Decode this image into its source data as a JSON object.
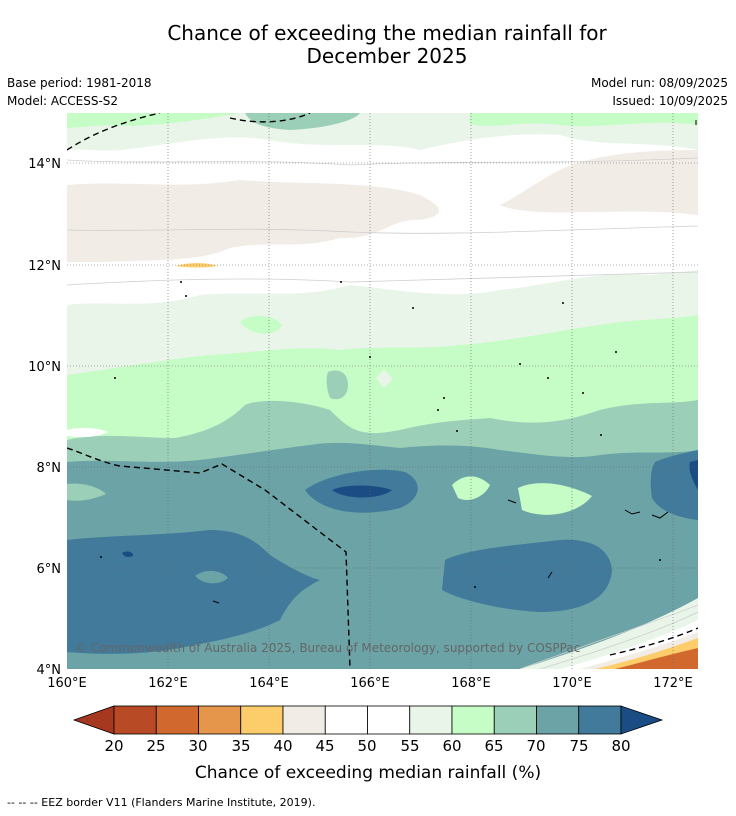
{
  "title_line1": "Chance of exceeding the median rainfall for",
  "title_line2": "December 2025",
  "meta_left": {
    "base_period": "Base period: 1981-2018",
    "model": "Model: ACCESS-S2"
  },
  "meta_right": {
    "model_run": "Model run: 08/09/2025",
    "issued": "Issued: 10/09/2025"
  },
  "lat_labels": [
    "14°N",
    "12°N",
    "10°N",
    "8°N",
    "6°N",
    "4°N"
  ],
  "lon_labels": [
    "160°E",
    "162°E",
    "164°E",
    "166°E",
    "168°E",
    "170°E",
    "172°E"
  ],
  "copyright": "© Commonwealth of Australia 2025, Bureau of Meteorology, supported by COSPPac",
  "colorbar": {
    "title": "Chance of exceeding median rainfall (%)",
    "labels": [
      "20",
      "25",
      "30",
      "35",
      "40",
      "45",
      "50",
      "55",
      "60",
      "65",
      "70",
      "75",
      "80"
    ],
    "colors": [
      "#a6381f",
      "#b84a26",
      "#d1692f",
      "#e5964b",
      "#fecd6b",
      "#f1ece6",
      "#ffffff",
      "#ffffff",
      "#e9f5e9",
      "#c6fcc6",
      "#9bcfb7",
      "#6ba3a6",
      "#417a9a",
      "#1b4d84"
    ]
  },
  "legend_note": "--  --  -- EEZ border V11 (Flanders Marine Institute, 2019)."
}
